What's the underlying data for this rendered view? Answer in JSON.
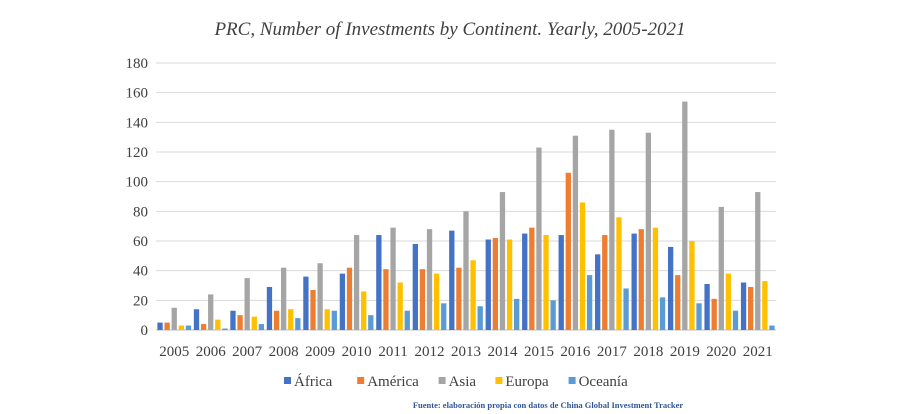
{
  "chart_data": {
    "type": "bar",
    "title": "PRC, Number of Investments by Continent. Yearly, 2005-2021",
    "categories": [
      "2005",
      "2006",
      "2007",
      "2008",
      "2009",
      "2010",
      "2011",
      "2012",
      "2013",
      "2014",
      "2015",
      "2016",
      "2017",
      "2018",
      "2019",
      "2020",
      "2021"
    ],
    "ylim": [
      0,
      180
    ],
    "yticks": [
      0,
      20,
      40,
      60,
      80,
      100,
      120,
      140,
      160,
      180
    ],
    "grid": true,
    "legend_position": "bottom",
    "series": [
      {
        "name": "África",
        "color": "#4472c4",
        "values": [
          5,
          14,
          13,
          29,
          36,
          38,
          64,
          58,
          67,
          61,
          65,
          64,
          51,
          65,
          56,
          31,
          32
        ]
      },
      {
        "name": "América",
        "color": "#ed7d31",
        "values": [
          5,
          4,
          10,
          13,
          27,
          42,
          41,
          41,
          42,
          62,
          69,
          106,
          64,
          68,
          37,
          21,
          29
        ]
      },
      {
        "name": "Asia",
        "color": "#a5a5a5",
        "values": [
          15,
          24,
          35,
          42,
          45,
          64,
          69,
          68,
          80,
          93,
          123,
          131,
          135,
          133,
          154,
          83,
          93
        ]
      },
      {
        "name": "Europa",
        "color": "#ffc000",
        "values": [
          3,
          7,
          9,
          14,
          14,
          26,
          32,
          38,
          47,
          61,
          64,
          86,
          76,
          69,
          60,
          38,
          33
        ]
      },
      {
        "name": "Oceanía",
        "color": "#5b9bd5",
        "values": [
          3,
          1,
          4,
          8,
          13,
          10,
          13,
          18,
          16,
          21,
          20,
          37,
          28,
          22,
          18,
          13,
          3
        ]
      }
    ],
    "source": "Fuente:  elaboración propia con datos de China Global Investment Tracker"
  }
}
